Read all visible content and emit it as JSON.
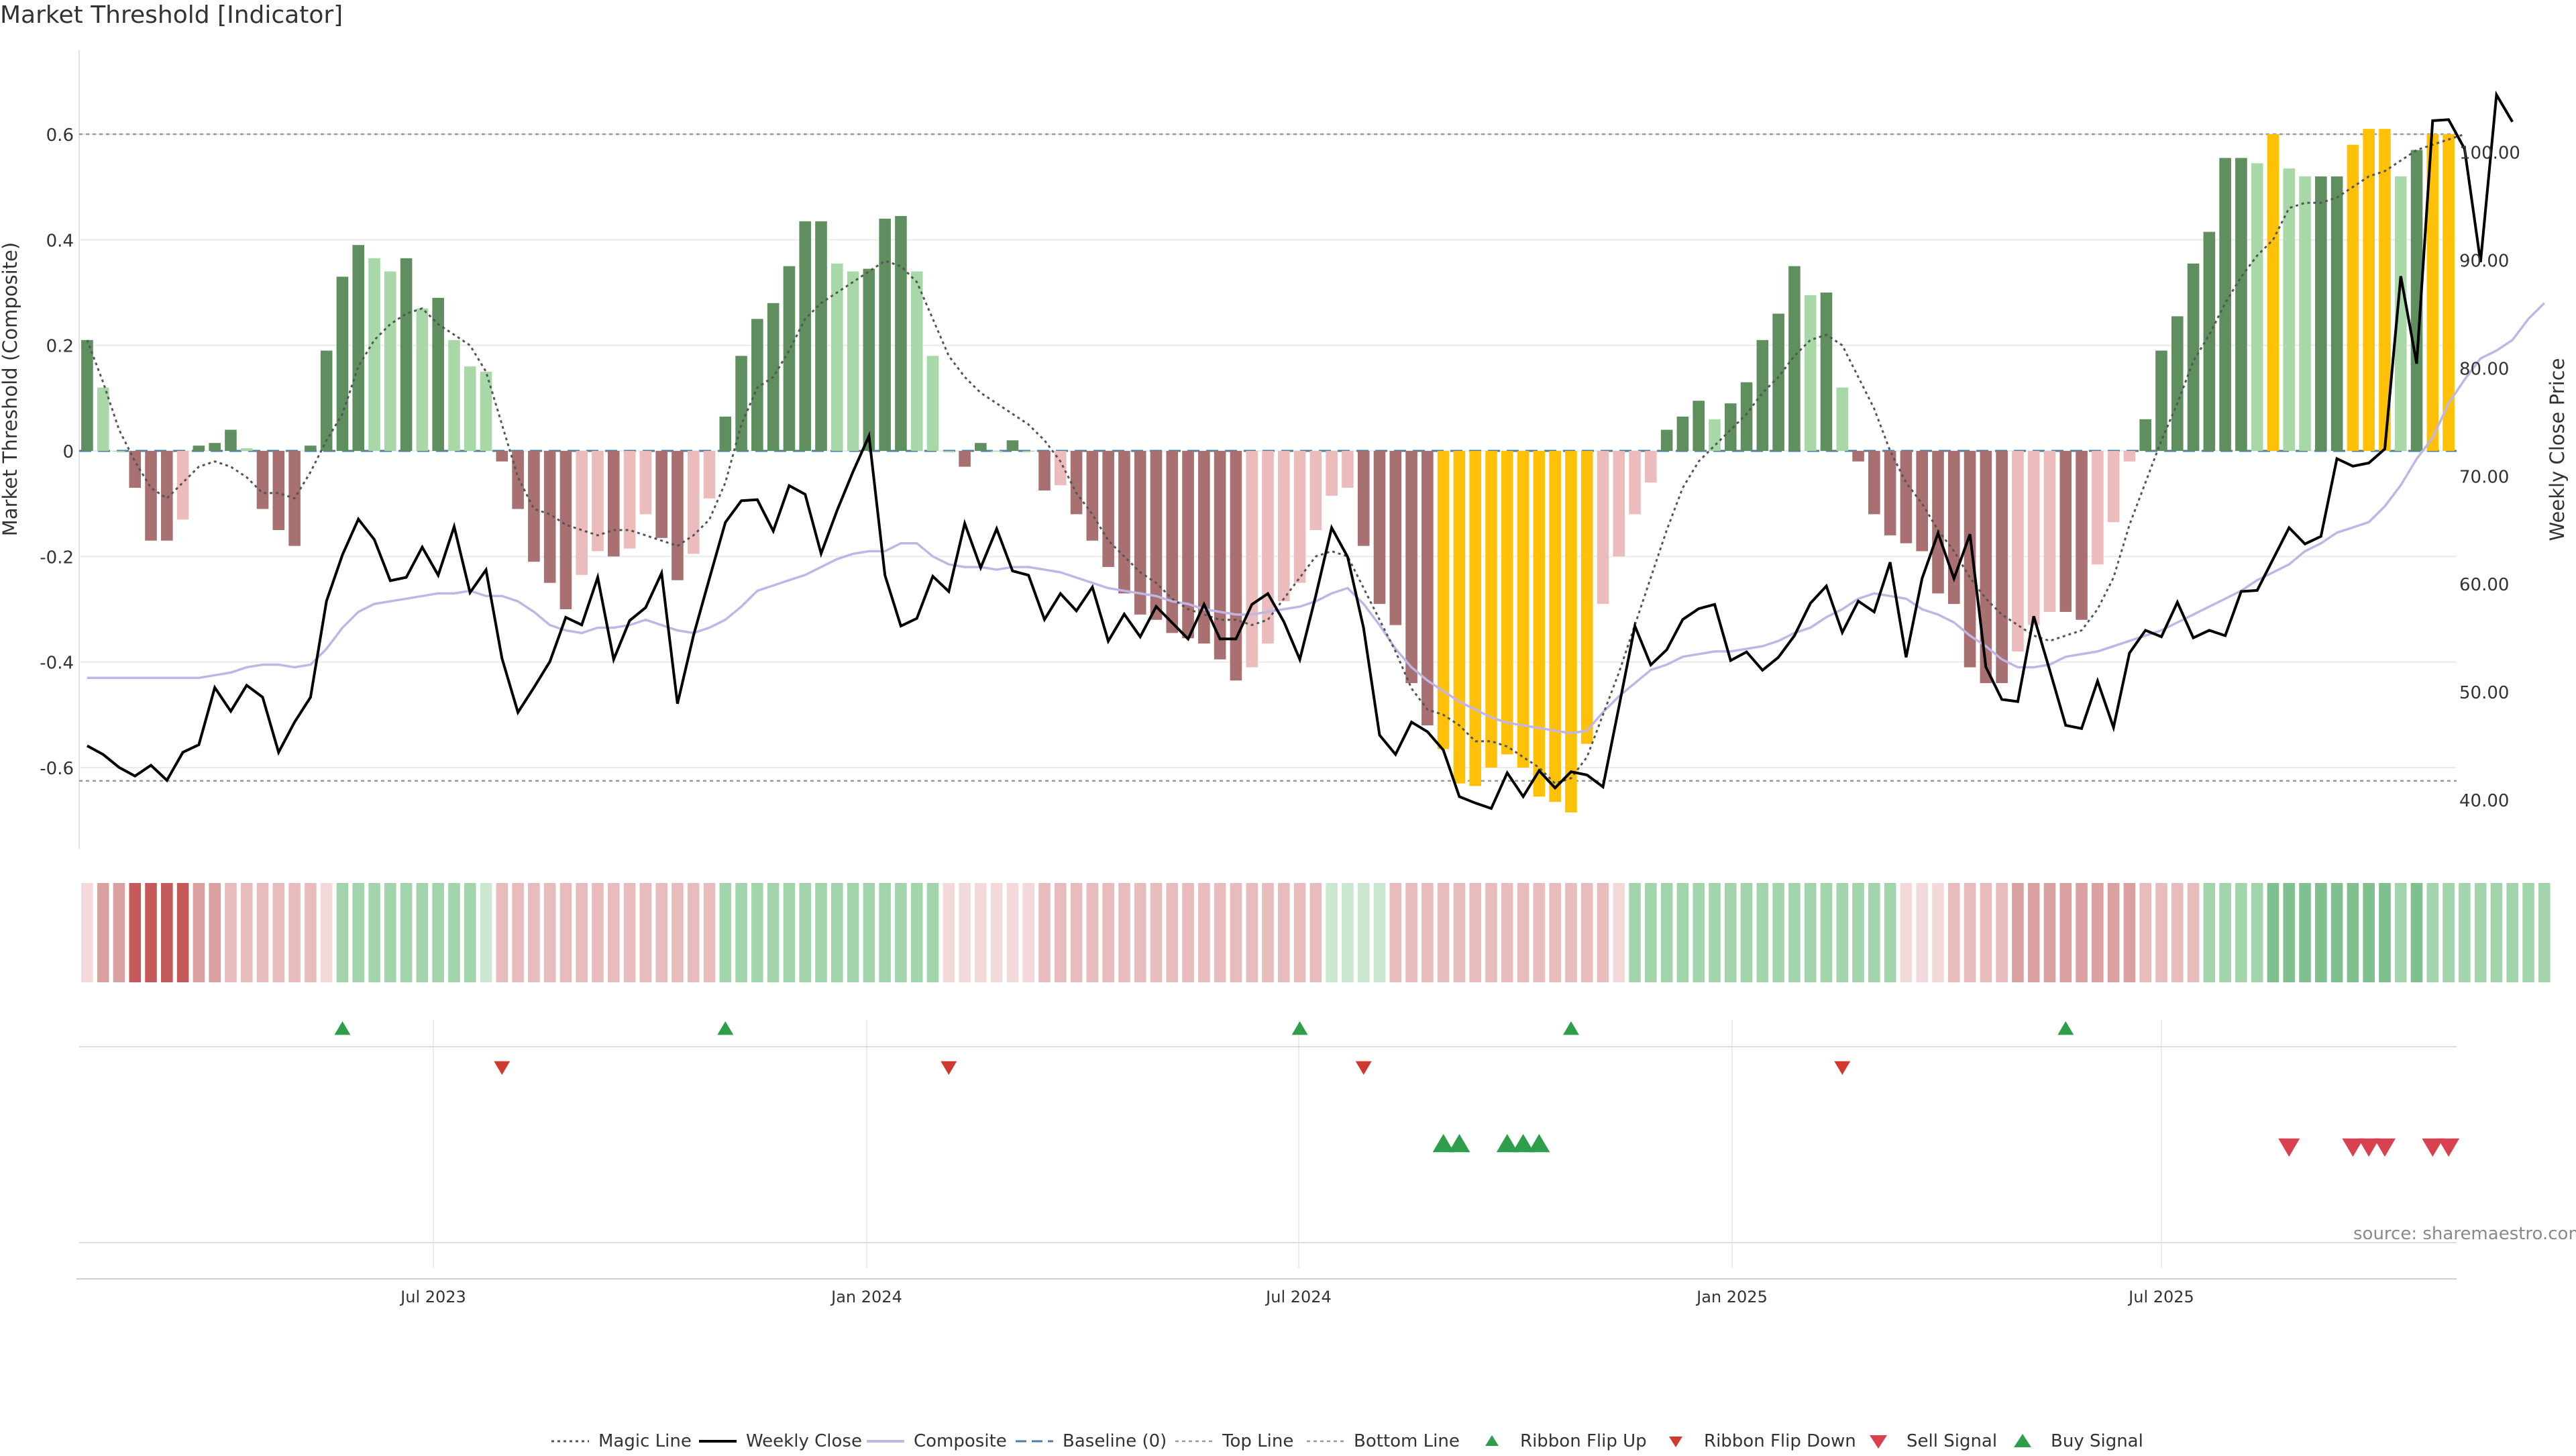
{
  "title": "Market Threshold [Indicator]",
  "source_note": "source: sharemaestro.com",
  "colors": {
    "bar_strong_green": "#5f8f5f",
    "bar_light_green": "#a8d8a8",
    "bar_strong_red": "#a87070",
    "bar_light_red": "#ecbcbc",
    "bar_extreme": "#ffc107",
    "magic_line": "#555555",
    "weekly_close": "#000000",
    "composite": "#c0b6e6",
    "baseline": "#4a7fa8",
    "threshold_line": "#999999",
    "ribbon_flip_up": "#2e9e4a",
    "ribbon_flip_down": "#d03a2e",
    "sell_signal": "#d94050",
    "buy_signal": "#2e9e4a"
  },
  "chart_data": {
    "type": "bar",
    "x_tick_labels": [
      "Jul 2023",
      "Jan 2024",
      "Jul 2024",
      "Jan 2025",
      "Jul 2025"
    ],
    "y_left": {
      "label": "Market Threshold (Composite)",
      "ticks": [
        "0.6",
        "0.4",
        "0.2",
        "0",
        "-0.2",
        "-0.4",
        "-0.6"
      ],
      "range": [
        -0.74,
        0.74
      ]
    },
    "y_right": {
      "label": "Weekly Close Price",
      "ticks": [
        "100.00",
        "90.00",
        "80.00",
        "70.00",
        "60.00",
        "50.00",
        "40.00"
      ],
      "range": [
        34,
        108
      ]
    },
    "top_line": 0.6,
    "bottom_line": -0.625,
    "legend": [
      "Magic Line",
      "Weekly Close",
      "Composite",
      "Baseline (0)",
      "Top Line",
      "Bottom Line",
      "Ribbon Flip Up",
      "Ribbon Flip Down",
      "Sell Signal",
      "Buy Signal"
    ],
    "series": [
      {
        "name": "Composite",
        "kind": "bar",
        "values": [
          0.21,
          0.12,
          0.0,
          -0.07,
          -0.17,
          -0.17,
          -0.13,
          0.01,
          0.015,
          0.04,
          0.005,
          -0.11,
          -0.15,
          -0.18,
          0.01,
          0.19,
          0.33,
          0.39,
          0.365,
          0.34,
          0.365,
          0.27,
          0.29,
          0.21,
          0.16,
          0.15,
          -0.02,
          -0.11,
          -0.21,
          -0.25,
          -0.3,
          -0.235,
          -0.19,
          -0.2,
          -0.185,
          -0.12,
          -0.165,
          -0.245,
          -0.195,
          -0.09,
          0.065,
          0.18,
          0.25,
          0.28,
          0.35,
          0.435,
          0.435,
          0.355,
          0.34,
          0.345,
          0.44,
          0.445,
          0.34,
          0.18,
          0.0,
          -0.03,
          0.015,
          0.0,
          0.02,
          0.0,
          -0.075,
          -0.065,
          -0.12,
          -0.17,
          -0.22,
          -0.27,
          -0.31,
          -0.32,
          -0.345,
          -0.355,
          -0.365,
          -0.395,
          -0.435,
          -0.41,
          -0.365,
          -0.285,
          -0.25,
          -0.15,
          -0.085,
          -0.07,
          -0.18,
          -0.29,
          -0.33,
          -0.44,
          -0.52,
          -0.565,
          -0.63,
          -0.635,
          -0.6,
          -0.575,
          -0.6,
          -0.655,
          -0.665,
          -0.685,
          -0.555,
          -0.29,
          -0.2,
          -0.12,
          -0.06,
          0.04,
          0.065,
          0.095,
          0.06,
          0.09,
          0.13,
          0.21,
          0.26,
          0.35,
          0.295,
          0.3,
          0.12,
          -0.02,
          -0.12,
          -0.16,
          -0.175,
          -0.19,
          -0.27,
          -0.29,
          -0.41,
          -0.44,
          -0.44,
          -0.38,
          -0.33,
          -0.305,
          -0.305,
          -0.32,
          -0.215,
          -0.135,
          -0.02,
          0.06,
          0.19,
          0.255,
          0.355,
          0.415,
          0.555,
          0.555,
          0.545,
          0.6,
          0.535,
          0.52,
          0.52,
          0.52,
          0.58,
          0.61,
          0.61,
          0.52,
          0.57,
          0.6,
          0.6
        ]
      },
      {
        "name": "Magic Line",
        "kind": "line",
        "values": [
          0.21,
          0.13,
          0.04,
          -0.02,
          -0.07,
          -0.09,
          -0.06,
          -0.03,
          -0.02,
          -0.03,
          -0.05,
          -0.08,
          -0.08,
          -0.09,
          -0.04,
          0.02,
          0.07,
          0.16,
          0.21,
          0.24,
          0.26,
          0.27,
          0.24,
          0.22,
          0.2,
          0.15,
          0.05,
          -0.05,
          -0.11,
          -0.12,
          -0.14,
          -0.15,
          -0.16,
          -0.15,
          -0.15,
          -0.16,
          -0.17,
          -0.18,
          -0.16,
          -0.13,
          -0.06,
          0.05,
          0.12,
          0.14,
          0.19,
          0.25,
          0.28,
          0.3,
          0.32,
          0.34,
          0.36,
          0.35,
          0.32,
          0.25,
          0.18,
          0.14,
          0.11,
          0.09,
          0.07,
          0.05,
          0.02,
          -0.02,
          -0.08,
          -0.12,
          -0.17,
          -0.2,
          -0.23,
          -0.25,
          -0.28,
          -0.3,
          -0.31,
          -0.32,
          -0.32,
          -0.33,
          -0.32,
          -0.28,
          -0.24,
          -0.2,
          -0.19,
          -0.2,
          -0.26,
          -0.32,
          -0.38,
          -0.45,
          -0.49,
          -0.5,
          -0.52,
          -0.55,
          -0.55,
          -0.56,
          -0.58,
          -0.6,
          -0.63,
          -0.62,
          -0.58,
          -0.5,
          -0.42,
          -0.33,
          -0.24,
          -0.15,
          -0.07,
          -0.02,
          0.01,
          0.04,
          0.07,
          0.11,
          0.14,
          0.18,
          0.21,
          0.22,
          0.2,
          0.14,
          0.08,
          0.0,
          -0.06,
          -0.1,
          -0.15,
          -0.19,
          -0.24,
          -0.28,
          -0.31,
          -0.33,
          -0.35,
          -0.36,
          -0.35,
          -0.34,
          -0.3,
          -0.24,
          -0.14,
          -0.06,
          0.02,
          0.09,
          0.17,
          0.22,
          0.28,
          0.33,
          0.37,
          0.4,
          0.46,
          0.47,
          0.47,
          0.48,
          0.5,
          0.52,
          0.53,
          0.55,
          0.57,
          0.58,
          0.59,
          0.6
        ]
      },
      {
        "name": "Weekly Close",
        "kind": "line",
        "axis": "right",
        "values": [
          45.0,
          44.2,
          43.0,
          42.2,
          43.2,
          41.8,
          44.4,
          45.1,
          50.4,
          48.2,
          50.6,
          49.5,
          44.4,
          47.2,
          49.5,
          58.4,
          62.7,
          66.0,
          64.1,
          60.3,
          60.6,
          63.4,
          60.8,
          65.3,
          59.2,
          61.3,
          53.1,
          48.1,
          50.4,
          52.8,
          56.9,
          56.2,
          60.6,
          53.0,
          56.6,
          57.8,
          61.0,
          48.9,
          55.2,
          60.5,
          65.7,
          67.7,
          67.8,
          64.9,
          69.1,
          68.3,
          62.8,
          66.8,
          70.4,
          73.7,
          60.8,
          56.1,
          56.8,
          60.7,
          59.3,
          65.6,
          61.5,
          65.1,
          61.2,
          60.8,
          56.7,
          59.1,
          57.5,
          59.7,
          54.7,
          57.2,
          55.1,
          57.9,
          56.4,
          54.9,
          58.1,
          54.9,
          54.9,
          58.1,
          59.1,
          56.5,
          53.0,
          58.9,
          65.2,
          62.5,
          55.9,
          46.0,
          44.2,
          47.2,
          46.3,
          44.6,
          40.3,
          39.7,
          39.2,
          42.5,
          40.3,
          42.7,
          41.1,
          42.6,
          42.3,
          41.2,
          48.6,
          56.1,
          52.5,
          53.9,
          56.7,
          57.7,
          58.1,
          52.9,
          53.7,
          52.0,
          53.2,
          55.2,
          58.2,
          59.8,
          55.5,
          58.4,
          57.4,
          62.0,
          53.2,
          60.5,
          64.7,
          60.5,
          64.6,
          52.3,
          49.3,
          49.1,
          57.0,
          52.0,
          46.9,
          46.6,
          51.0,
          46.7,
          53.6,
          55.7,
          55.1,
          58.3,
          55.0,
          55.7,
          55.2,
          59.3,
          59.4,
          62.3,
          65.2,
          63.7,
          64.4,
          71.6,
          70.9,
          71.2,
          72.5,
          88.5,
          80.4,
          102.9,
          103.0,
          100.3,
          89.8,
          105.3,
          102.8
        ]
      },
      {
        "name": "Composite",
        "kind": "line",
        "note": "smoothed composite line",
        "values": [
          -0.43,
          -0.43,
          -0.43,
          -0.43,
          -0.43,
          -0.43,
          -0.43,
          -0.43,
          -0.425,
          -0.42,
          -0.41,
          -0.405,
          -0.405,
          -0.41,
          -0.405,
          -0.375,
          -0.335,
          -0.305,
          -0.29,
          -0.285,
          -0.28,
          -0.275,
          -0.27,
          -0.27,
          -0.265,
          -0.275,
          -0.275,
          -0.285,
          -0.305,
          -0.33,
          -0.34,
          -0.345,
          -0.335,
          -0.335,
          -0.33,
          -0.32,
          -0.33,
          -0.34,
          -0.345,
          -0.335,
          -0.32,
          -0.295,
          -0.265,
          -0.255,
          -0.245,
          -0.235,
          -0.22,
          -0.205,
          -0.195,
          -0.19,
          -0.19,
          -0.175,
          -0.175,
          -0.2,
          -0.215,
          -0.22,
          -0.22,
          -0.225,
          -0.22,
          -0.22,
          -0.225,
          -0.23,
          -0.24,
          -0.25,
          -0.26,
          -0.265,
          -0.27,
          -0.275,
          -0.285,
          -0.29,
          -0.3,
          -0.305,
          -0.31,
          -0.31,
          -0.305,
          -0.3,
          -0.295,
          -0.285,
          -0.27,
          -0.26,
          -0.29,
          -0.33,
          -0.375,
          -0.41,
          -0.435,
          -0.455,
          -0.475,
          -0.49,
          -0.505,
          -0.515,
          -0.52,
          -0.525,
          -0.53,
          -0.535,
          -0.53,
          -0.495,
          -0.465,
          -0.44,
          -0.415,
          -0.405,
          -0.39,
          -0.385,
          -0.38,
          -0.38,
          -0.375,
          -0.37,
          -0.36,
          -0.345,
          -0.335,
          -0.315,
          -0.3,
          -0.28,
          -0.27,
          -0.275,
          -0.28,
          -0.3,
          -0.31,
          -0.325,
          -0.35,
          -0.37,
          -0.395,
          -0.41,
          -0.41,
          -0.405,
          -0.39,
          -0.385,
          -0.38,
          -0.37,
          -0.36,
          -0.35,
          -0.34,
          -0.325,
          -0.31,
          -0.295,
          -0.28,
          -0.265,
          -0.245,
          -0.23,
          -0.215,
          -0.19,
          -0.175,
          -0.155,
          -0.145,
          -0.135,
          -0.105,
          -0.065,
          -0.015,
          0.025,
          0.09,
          0.135,
          0.175,
          0.19,
          0.21,
          0.25,
          0.28
        ]
      }
    ],
    "ribbon": {
      "levels": [
        -1,
        -3,
        -3,
        -4,
        -4,
        -4,
        -4,
        -3,
        -3,
        -2,
        -2,
        -2,
        -2,
        -2,
        -2,
        -1,
        2,
        2,
        2,
        2,
        2,
        2,
        2,
        2,
        2,
        1,
        -2,
        -2,
        -2,
        -2,
        -2,
        -2,
        -2,
        -2,
        -2,
        -2,
        -2,
        -2,
        -2,
        -2,
        2,
        2,
        2,
        2,
        2,
        2,
        2,
        2,
        2,
        2,
        2,
        2,
        2,
        2,
        -1,
        -1,
        -1,
        -1,
        -1,
        -1,
        -2,
        -2,
        -2,
        -2,
        -2,
        -2,
        -2,
        -2,
        -2,
        -2,
        -2,
        -2,
        -2,
        -2,
        -2,
        -2,
        -2,
        -2,
        1,
        1,
        1,
        1,
        -2,
        -2,
        -2,
        -2,
        -2,
        -2,
        -2,
        -2,
        -2,
        -2,
        -2,
        -2,
        -2,
        -2,
        -1,
        2,
        2,
        2,
        2,
        2,
        2,
        2,
        2,
        2,
        2,
        2,
        2,
        2,
        2,
        2,
        2,
        2,
        -1,
        -1,
        -1,
        -2,
        -2,
        -2,
        -2,
        -3,
        -3,
        -3,
        -3,
        -3,
        -3,
        -3,
        -3,
        -2,
        -2,
        -2,
        -2,
        2,
        2,
        2,
        2,
        3,
        3,
        3,
        3,
        3,
        3,
        3,
        3,
        2,
        3,
        2,
        2,
        2,
        2,
        2,
        2,
        2,
        2
      ]
    },
    "signals": {
      "ribbon_flip_up": [
        16,
        40,
        76,
        93,
        124
      ],
      "ribbon_flip_down": [
        26,
        54,
        80,
        110
      ],
      "buy_signal": [
        85,
        86,
        89,
        90,
        91
      ],
      "sell_signal": [
        138,
        142,
        143,
        144,
        147,
        148
      ]
    }
  }
}
